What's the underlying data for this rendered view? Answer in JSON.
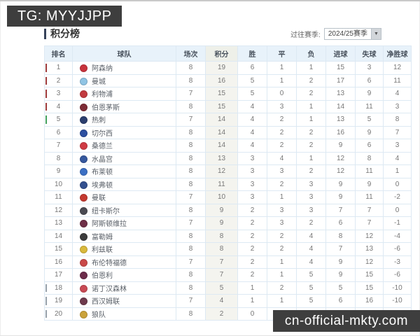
{
  "watermarks": {
    "top_left": "TG: MYYJJPP",
    "bottom_right": "cn-official-mkty.com"
  },
  "header": {
    "title": "积分榜",
    "season_label": "过往赛季:",
    "season_value": "2024/25赛季",
    "dropdown_arrow_icon": "▼"
  },
  "colors": {
    "zone_red": "#a03c3c",
    "zone_green": "#46a35f",
    "zone_gray": "#98a2ab",
    "header_bg": "#e8f2fa",
    "points_col_bg": "#f4f4ef",
    "table_border": "#dde9f3",
    "badge_bg": "#3e3e3e"
  },
  "standings": {
    "columns": [
      "排名",
      "球队",
      "场次",
      "积分",
      "胜",
      "平",
      "负",
      "进球",
      "失球",
      "净胜球"
    ],
    "rows": [
      {
        "rank": 1,
        "team": "阿森纳",
        "played": 8,
        "points": 19,
        "win": 6,
        "draw": 1,
        "loss": 1,
        "gf": 15,
        "ga": 3,
        "gd": 12,
        "zone": "red",
        "crest": "#c8333c"
      },
      {
        "rank": 2,
        "team": "曼城",
        "played": 8,
        "points": 16,
        "win": 5,
        "draw": 1,
        "loss": 2,
        "gf": 17,
        "ga": 6,
        "gd": 11,
        "zone": "red",
        "crest": "#8fc4e4"
      },
      {
        "rank": 3,
        "team": "利物浦",
        "played": 7,
        "points": 15,
        "win": 5,
        "draw": 0,
        "loss": 2,
        "gf": 13,
        "ga": 9,
        "gd": 4,
        "zone": "red",
        "crest": "#c23a3f"
      },
      {
        "rank": 4,
        "team": "伯恩茅斯",
        "played": 8,
        "points": 15,
        "win": 4,
        "draw": 3,
        "loss": 1,
        "gf": 14,
        "ga": 11,
        "gd": 3,
        "zone": "red",
        "crest": "#7e2b36"
      },
      {
        "rank": 5,
        "team": "热刺",
        "played": 7,
        "points": 14,
        "win": 4,
        "draw": 2,
        "loss": 1,
        "gf": 13,
        "ga": 5,
        "gd": 8,
        "zone": "green",
        "crest": "#2a3e6e"
      },
      {
        "rank": 6,
        "team": "切尔西",
        "played": 8,
        "points": 14,
        "win": 4,
        "draw": 2,
        "loss": 2,
        "gf": 16,
        "ga": 9,
        "gd": 7,
        "zone": null,
        "crest": "#2b4ea0"
      },
      {
        "rank": 7,
        "team": "桑德兰",
        "played": 8,
        "points": 14,
        "win": 4,
        "draw": 2,
        "loss": 2,
        "gf": 9,
        "ga": 6,
        "gd": 3,
        "zone": null,
        "crest": "#d03b44"
      },
      {
        "rank": 8,
        "team": "水晶宫",
        "played": 8,
        "points": 13,
        "win": 3,
        "draw": 4,
        "loss": 1,
        "gf": 12,
        "ga": 8,
        "gd": 4,
        "zone": null,
        "crest": "#35589e"
      },
      {
        "rank": 9,
        "team": "布莱顿",
        "played": 8,
        "points": 12,
        "win": 3,
        "draw": 3,
        "loss": 2,
        "gf": 12,
        "ga": 11,
        "gd": 1,
        "zone": null,
        "crest": "#3a6fc4"
      },
      {
        "rank": 10,
        "team": "埃弗顿",
        "played": 8,
        "points": 11,
        "win": 3,
        "draw": 2,
        "loss": 3,
        "gf": 9,
        "ga": 9,
        "gd": 0,
        "zone": null,
        "crest": "#33508f"
      },
      {
        "rank": 11,
        "team": "曼联",
        "played": 7,
        "points": 10,
        "win": 3,
        "draw": 1,
        "loss": 3,
        "gf": 9,
        "ga": 11,
        "gd": -2,
        "zone": null,
        "crest": "#c4392f"
      },
      {
        "rank": 12,
        "team": "纽卡斯尔",
        "played": 8,
        "points": 9,
        "win": 2,
        "draw": 3,
        "loss": 3,
        "gf": 7,
        "ga": 7,
        "gd": 0,
        "zone": null,
        "crest": "#4a4a52"
      },
      {
        "rank": 13,
        "team": "阿斯顿维拉",
        "played": 7,
        "points": 9,
        "win": 2,
        "draw": 3,
        "loss": 2,
        "gf": 6,
        "ga": 7,
        "gd": -1,
        "zone": null,
        "crest": "#6e2f47"
      },
      {
        "rank": 14,
        "team": "富勒姆",
        "played": 8,
        "points": 8,
        "win": 2,
        "draw": 2,
        "loss": 4,
        "gf": 8,
        "ga": 12,
        "gd": -4,
        "zone": null,
        "crest": "#3c3c3c"
      },
      {
        "rank": 15,
        "team": "利兹联",
        "played": 8,
        "points": 8,
        "win": 2,
        "draw": 2,
        "loss": 4,
        "gf": 7,
        "ga": 13,
        "gd": -6,
        "zone": null,
        "crest": "#d9b93c"
      },
      {
        "rank": 16,
        "team": "布伦特福德",
        "played": 7,
        "points": 7,
        "win": 2,
        "draw": 1,
        "loss": 4,
        "gf": 9,
        "ga": 12,
        "gd": -3,
        "zone": null,
        "crest": "#c94848"
      },
      {
        "rank": 17,
        "team": "伯恩利",
        "played": 8,
        "points": 7,
        "win": 2,
        "draw": 1,
        "loss": 5,
        "gf": 9,
        "ga": 15,
        "gd": -6,
        "zone": null,
        "crest": "#6d2c4a"
      },
      {
        "rank": 18,
        "team": "诺丁汉森林",
        "played": 8,
        "points": 5,
        "win": 1,
        "draw": 2,
        "loss": 5,
        "gf": 5,
        "ga": 15,
        "gd": -10,
        "zone": "gray",
        "crest": "#c94a55"
      },
      {
        "rank": 19,
        "team": "西汉姆联",
        "played": 7,
        "points": 4,
        "win": 1,
        "draw": 1,
        "loss": 5,
        "gf": 6,
        "ga": 16,
        "gd": -10,
        "zone": "gray",
        "crest": "#6e3a4d"
      },
      {
        "rank": 20,
        "team": "狼队",
        "played": 8,
        "points": 2,
        "win": 0,
        "draw": 2,
        "loss": 6,
        "gf": 5,
        "ga": 16,
        "gd": -11,
        "zone": "gray",
        "crest": "#caa23a"
      }
    ]
  }
}
